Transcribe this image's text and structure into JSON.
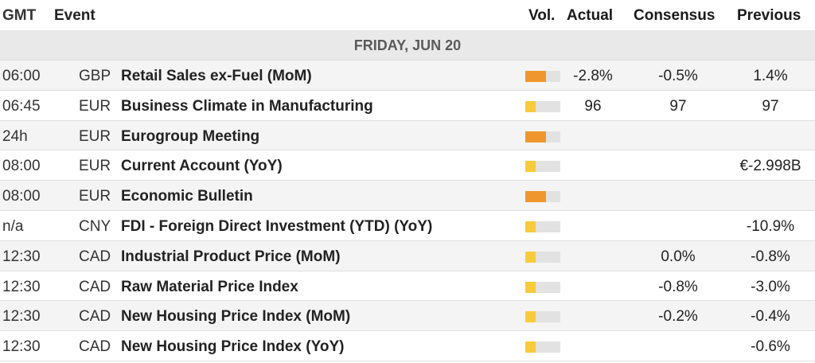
{
  "header": {
    "gmt": "GMT",
    "event": "Event",
    "vol": "Vol.",
    "actual": "Actual",
    "consensus": "Consensus",
    "previous": "Previous"
  },
  "day_label": "FRIDAY, JUN 20",
  "colors": {
    "high": "#f0962e",
    "low": "#f8cb3c",
    "track": "#e2e2e2"
  },
  "events": [
    {
      "time": "06:00",
      "currency": "GBP",
      "name": "Retail Sales ex-Fuel (MoM)",
      "volatility": 0.6,
      "level": "high",
      "actual": "-2.8%",
      "consensus": "-0.5%",
      "previous": "1.4%"
    },
    {
      "time": "06:45",
      "currency": "EUR",
      "name": "Business Climate in Manufacturing",
      "volatility": 0.3,
      "level": "low",
      "actual": "96",
      "consensus": "97",
      "previous": "97"
    },
    {
      "time": "24h",
      "currency": "EUR",
      "name": "Eurogroup Meeting",
      "volatility": 0.6,
      "level": "high",
      "actual": "",
      "consensus": "",
      "previous": ""
    },
    {
      "time": "08:00",
      "currency": "EUR",
      "name": "Current Account (YoY)",
      "volatility": 0.3,
      "level": "low",
      "actual": "",
      "consensus": "",
      "previous": "€-2.998B"
    },
    {
      "time": "08:00",
      "currency": "EUR",
      "name": "Economic Bulletin",
      "volatility": 0.6,
      "level": "high",
      "actual": "",
      "consensus": "",
      "previous": ""
    },
    {
      "time": "n/a",
      "currency": "CNY",
      "name": "FDI - Foreign Direct Investment (YTD) (YoY)",
      "volatility": 0.3,
      "level": "low",
      "actual": "",
      "consensus": "",
      "previous": "-10.9%"
    },
    {
      "time": "12:30",
      "currency": "CAD",
      "name": "Industrial Product Price (MoM)",
      "volatility": 0.3,
      "level": "low",
      "actual": "",
      "consensus": "0.0%",
      "previous": "-0.8%"
    },
    {
      "time": "12:30",
      "currency": "CAD",
      "name": "Raw Material Price Index",
      "volatility": 0.3,
      "level": "low",
      "actual": "",
      "consensus": "-0.8%",
      "previous": "-3.0%"
    },
    {
      "time": "12:30",
      "currency": "CAD",
      "name": "New Housing Price Index (MoM)",
      "volatility": 0.3,
      "level": "low",
      "actual": "",
      "consensus": "-0.2%",
      "previous": "-0.4%"
    },
    {
      "time": "12:30",
      "currency": "CAD",
      "name": "New Housing Price Index (YoY)",
      "volatility": 0.3,
      "level": "low",
      "actual": "",
      "consensus": "",
      "previous": "-0.6%"
    }
  ]
}
